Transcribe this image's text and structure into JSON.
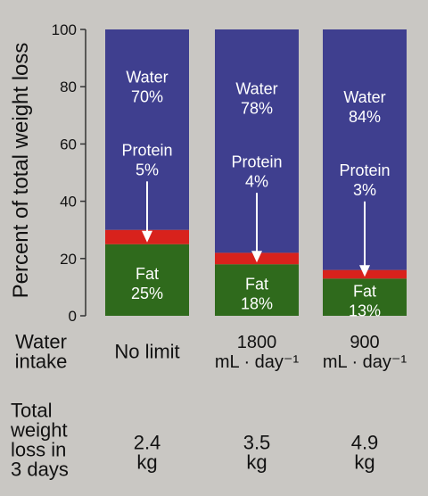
{
  "colors": {
    "background": "#c9c7c3",
    "water": "#3f3f8f",
    "protein": "#d8221c",
    "fat": "#2f6a1c",
    "text_dark": "#111111",
    "text_light": "#ffffff"
  },
  "chart_data": {
    "type": "bar",
    "stacked": true,
    "ylabel": "Percent of total weight loss",
    "ylim": [
      0,
      100
    ],
    "yticks": [
      0,
      20,
      40,
      60,
      80,
      100
    ],
    "grid": false,
    "legend": "none",
    "categories": [
      "No limit",
      "1800 mL · day⁻¹",
      "900 mL · day⁻¹"
    ],
    "series": [
      {
        "name": "Fat",
        "color": "#2f6a1c",
        "values": [
          25,
          18,
          13
        ],
        "labels": [
          "Fat\n25%",
          "Fat\n18%",
          "Fat\n13%"
        ]
      },
      {
        "name": "Protein",
        "color": "#d8221c",
        "values": [
          5,
          4,
          3
        ],
        "labels": [
          "Protein\n5%",
          "Protein\n4%",
          "Protein\n3%"
        ]
      },
      {
        "name": "Water",
        "color": "#3f3f8f",
        "values": [
          70,
          78,
          84
        ],
        "labels": [
          "Water\n70%",
          "Water\n78%",
          "Water\n84%"
        ]
      }
    ],
    "row_labels": {
      "water_intake": "Water\nintake",
      "total_loss": "Total\nweight\nloss in\n3 days"
    },
    "water_intake": [
      "No limit",
      "1800\nmL · day⁻¹",
      "900\nmL · day⁻¹"
    ],
    "total_weight_loss": [
      "2.4\nkg",
      "3.5\nkg",
      "4.9\nkg"
    ]
  }
}
